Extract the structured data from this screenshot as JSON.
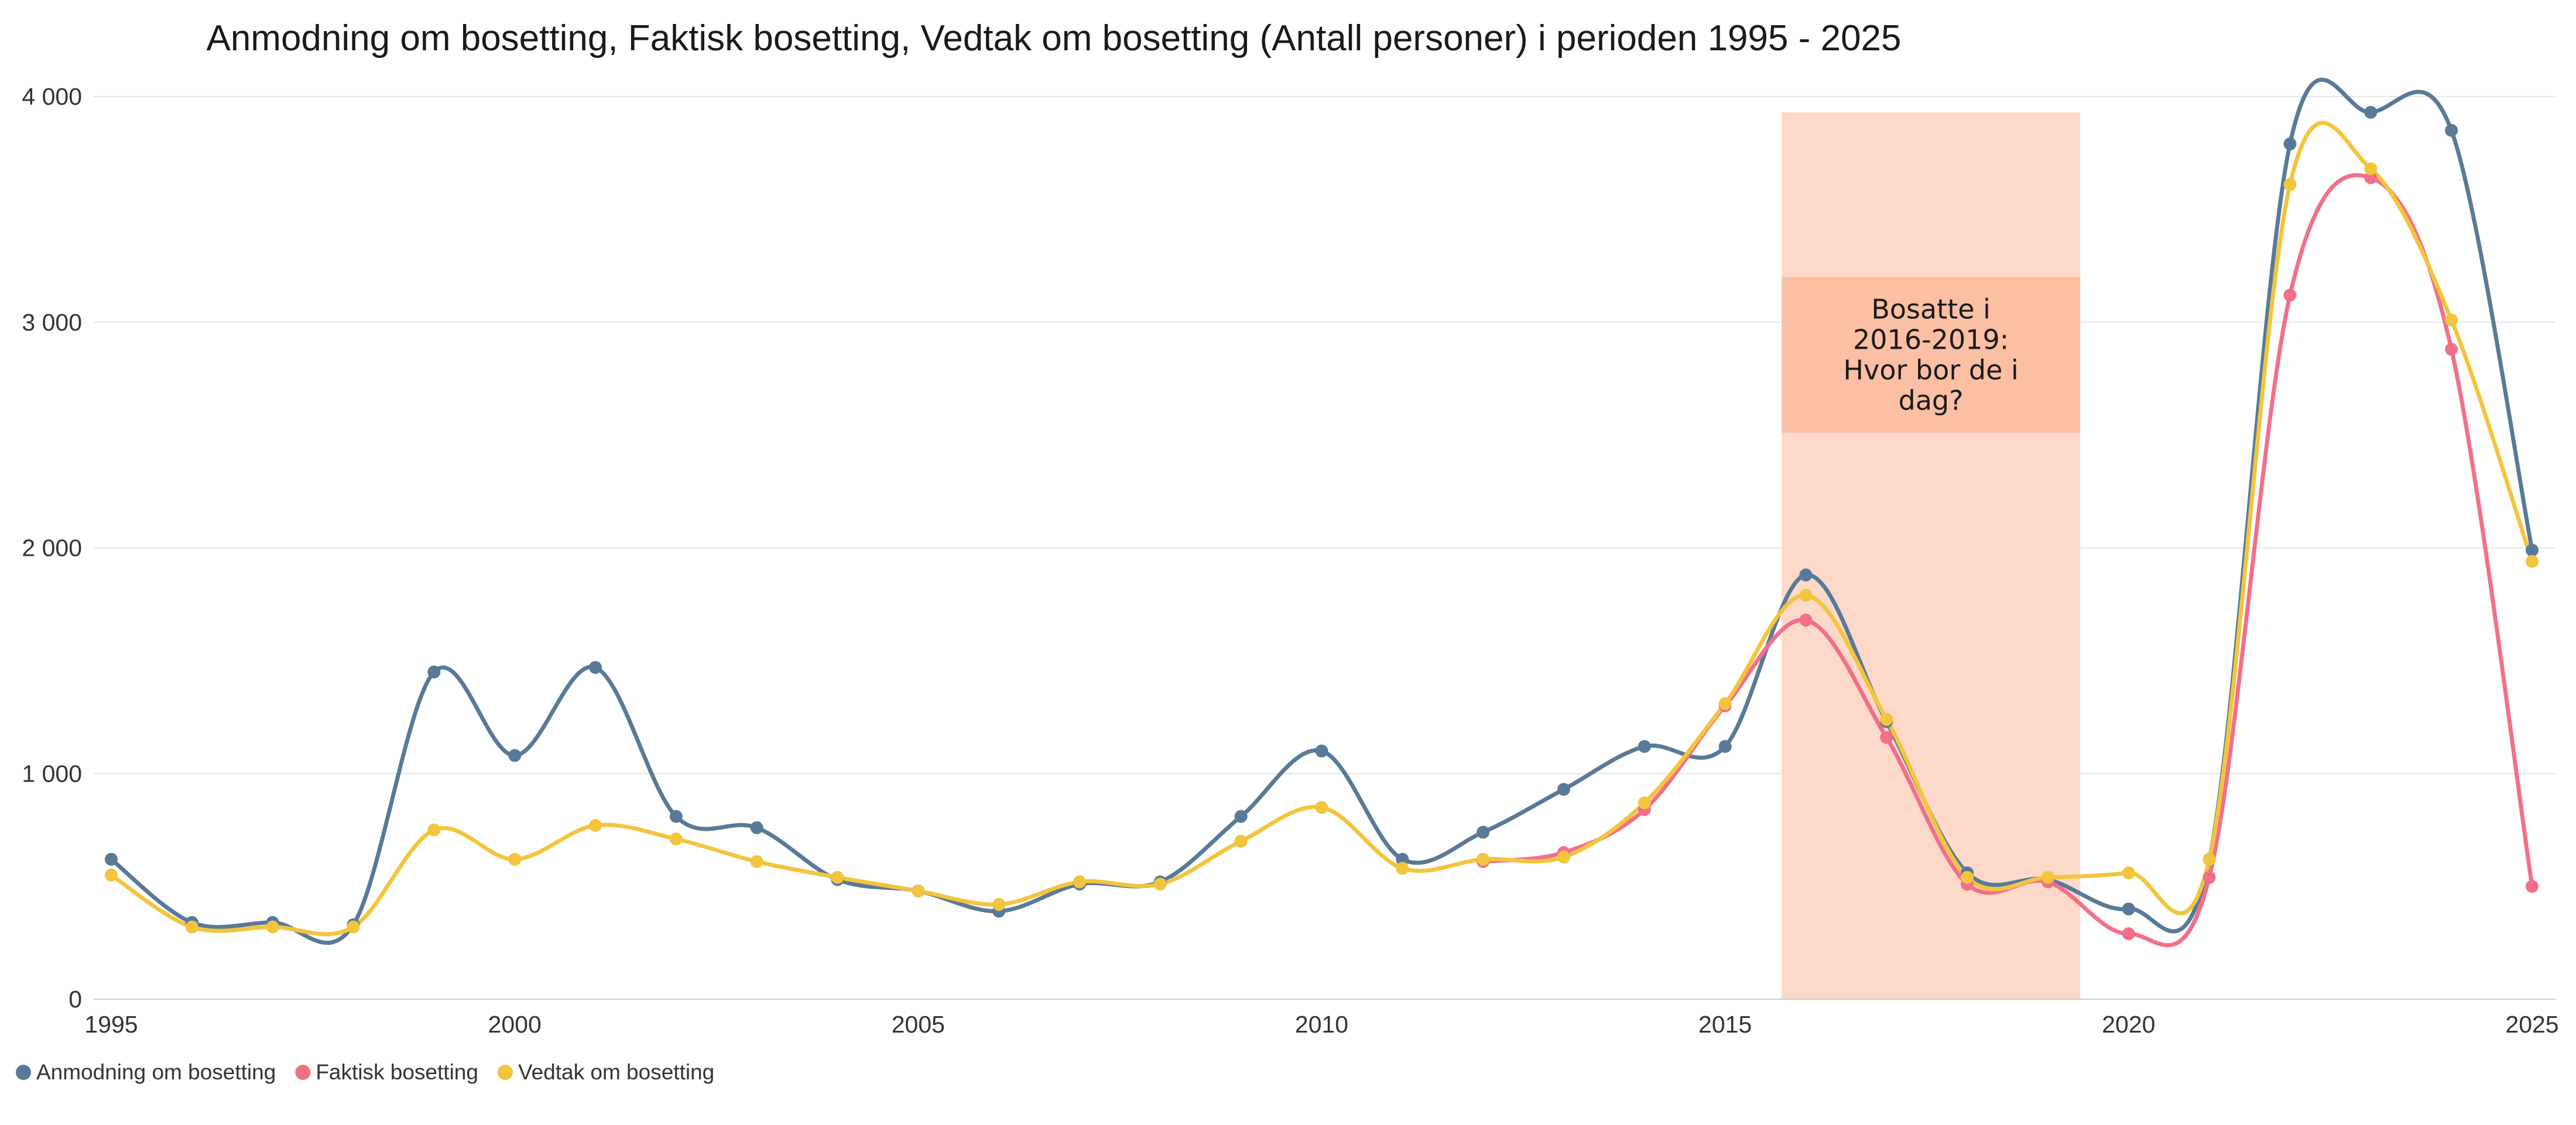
{
  "chart_data": {
    "type": "line",
    "title": "Anmodning om bosetting, Faktisk bosetting, Vedtak om bosetting (Antall personer) i perioden 1995 - 2025",
    "xlabel": "",
    "ylabel": "",
    "xlim": [
      1995,
      2025
    ],
    "ylim": [
      0,
      4000
    ],
    "x_ticks": [
      "1995",
      "2000",
      "2005",
      "2010",
      "2015",
      "2020",
      "2025"
    ],
    "y_ticks": [
      "0",
      "1 000",
      "2 000",
      "3 000",
      "4 000"
    ],
    "grid": true,
    "legend_position": "bottom-left",
    "x": [
      1995,
      1996,
      1997,
      1998,
      1999,
      2000,
      2001,
      2002,
      2003,
      2004,
      2005,
      2006,
      2007,
      2008,
      2009,
      2010,
      2011,
      2012,
      2013,
      2014,
      2015,
      2016,
      2017,
      2018,
      2019,
      2020,
      2021,
      2022,
      2023,
      2024,
      2025
    ],
    "series": [
      {
        "name": "Anmodning om bosetting",
        "color": "#587a98",
        "values": [
          620,
          340,
          340,
          330,
          1450,
          1080,
          1470,
          810,
          760,
          530,
          480,
          390,
          510,
          520,
          810,
          1100,
          620,
          740,
          930,
          1120,
          1120,
          1880,
          1230,
          560,
          530,
          400,
          620,
          3790,
          3930,
          3850,
          1990
        ]
      },
      {
        "name": "Faktisk bosetting",
        "color": "#f26f8a",
        "values": [
          null,
          null,
          null,
          null,
          null,
          null,
          null,
          null,
          null,
          null,
          null,
          null,
          null,
          null,
          null,
          null,
          null,
          610,
          650,
          840,
          1300,
          1680,
          1160,
          510,
          520,
          290,
          540,
          3120,
          3640,
          2880,
          500
        ]
      },
      {
        "name": "Vedtak om bosetting",
        "color": "#f2c53d",
        "values": [
          550,
          320,
          320,
          320,
          750,
          620,
          770,
          710,
          610,
          540,
          480,
          420,
          520,
          510,
          700,
          850,
          580,
          620,
          630,
          870,
          1310,
          1790,
          1240,
          540,
          540,
          560,
          620,
          3610,
          3680,
          3010,
          1940
        ]
      }
    ],
    "annotation": {
      "x_start": 2015.7,
      "x_end": 2019.4,
      "y_top": 3930,
      "box_y_top": 3200,
      "box_y_bottom": 2510,
      "color": "#fcd9c8",
      "box_color": "#fbbfa4",
      "lines": [
        "Bosatte i",
        "2016-2019:",
        "Hvor bor de i",
        "dag?"
      ]
    }
  }
}
